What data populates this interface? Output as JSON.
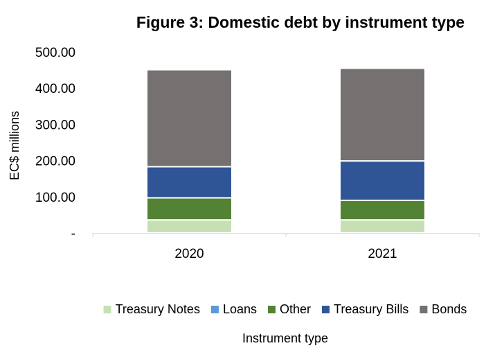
{
  "chart_data": {
    "type": "bar",
    "stacked": true,
    "title": "Figure 3: Domestic debt by instrument type",
    "xlabel": "Instrument type",
    "ylabel": "EC$ millions",
    "ylim": [
      0,
      500
    ],
    "yticks": [
      "-",
      "100.00",
      "200.00",
      "300.00",
      "400.00",
      "500.00"
    ],
    "grid": false,
    "legend_position": "bottom",
    "categories": [
      "2020",
      "2021"
    ],
    "series": [
      {
        "name": "Treasury Notes",
        "color": "#c6e0b4",
        "values": [
          36,
          36
        ]
      },
      {
        "name": "Loans",
        "color": "#5b9bd5",
        "values": [
          0,
          0
        ]
      },
      {
        "name": "Other",
        "color": "#548235",
        "values": [
          61,
          54
        ]
      },
      {
        "name": "Treasury Bills",
        "color": "#2f5597",
        "values": [
          86,
          109
        ]
      },
      {
        "name": "Bonds",
        "color": "#767171",
        "values": [
          268,
          256
        ]
      }
    ]
  }
}
